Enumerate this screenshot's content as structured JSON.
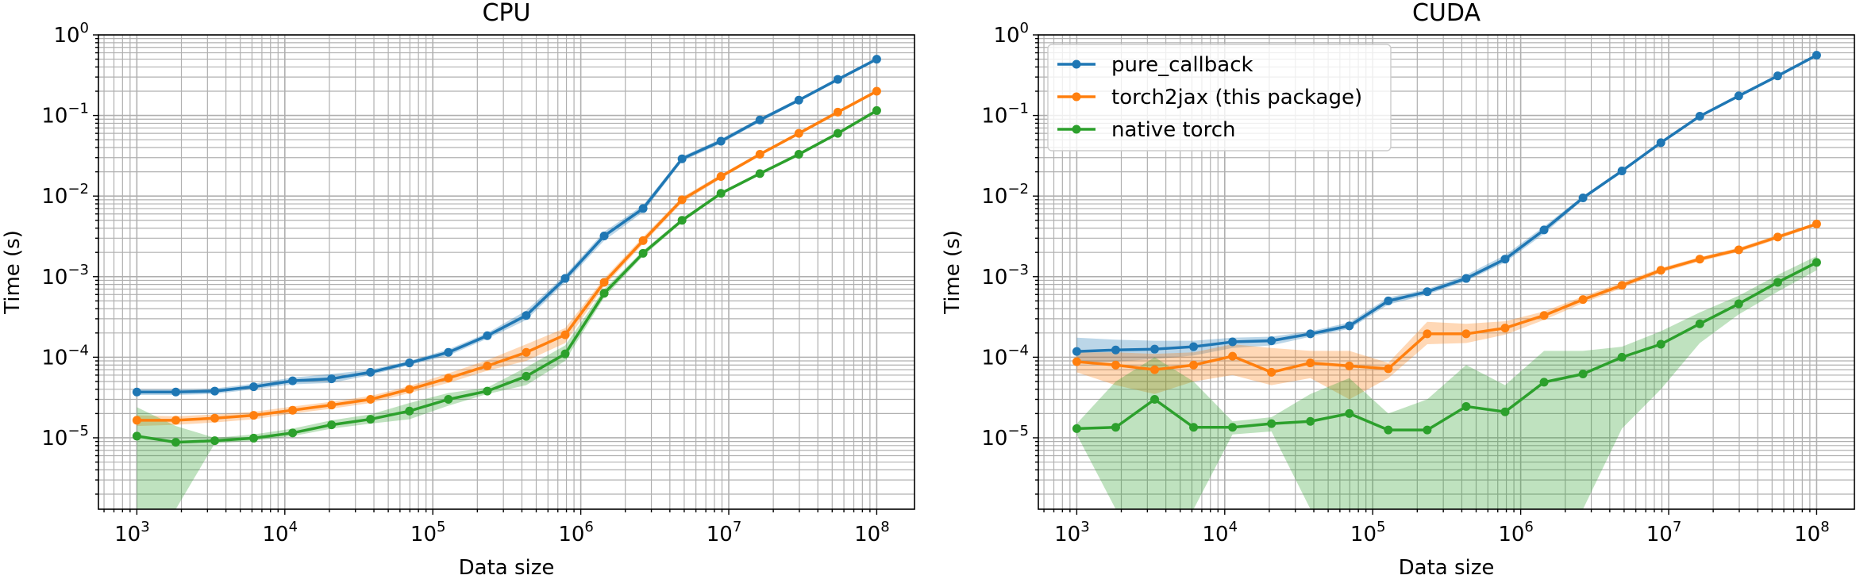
{
  "chart_data": [
    {
      "type": "line",
      "title": "CPU",
      "xlabel": "Data size",
      "ylabel": "Time (s)",
      "xscale": "log",
      "yscale": "log",
      "xlim": [
        550,
        180000000
      ],
      "ylim": [
        1.3e-06,
        1.0
      ],
      "grid": "major and minor",
      "legend": null,
      "x": [
        1000,
        1833,
        3360,
        6158,
        11288,
        20691,
        37927,
        69519,
        127427,
        233572,
        428133,
        784760,
        1438450,
        2636651,
        4832930,
        8858668,
        16237767,
        29763514,
        54555948,
        100000000
      ],
      "series": [
        {
          "name": "pure_callback",
          "color": "#1f77b4",
          "values": [
            3.7e-05,
            3.7e-05,
            3.8e-05,
            4.3e-05,
            5.1e-05,
            5.4e-05,
            6.5e-05,
            8.5e-05,
            0.000115,
            0.000185,
            0.00033,
            0.00095,
            0.0032,
            0.007,
            0.029,
            0.048,
            0.088,
            0.155,
            0.28,
            0.5
          ],
          "band_low": [
            3.4e-05,
            3.4e-05,
            3.5e-05,
            4e-05,
            4.6e-05,
            4.8e-05,
            6e-05,
            8e-05,
            0.000105,
            0.00017,
            0.00029,
            0.00085,
            0.0028,
            0.0063,
            0.027,
            0.045,
            0.083,
            0.148,
            0.27,
            0.48
          ],
          "band_high": [
            4e-05,
            4e-05,
            4.1e-05,
            4.7e-05,
            5.6e-05,
            6.2e-05,
            7e-05,
            9e-05,
            0.000125,
            0.0002,
            0.00038,
            0.00105,
            0.0036,
            0.0077,
            0.031,
            0.051,
            0.093,
            0.162,
            0.29,
            0.52
          ]
        },
        {
          "name": "torch2jax (this package)",
          "color": "#ff7f0e",
          "values": [
            1.65e-05,
            1.65e-05,
            1.75e-05,
            1.9e-05,
            2.2e-05,
            2.55e-05,
            3e-05,
            4e-05,
            5.5e-05,
            7.8e-05,
            0.000115,
            0.00019,
            0.00085,
            0.0028,
            0.009,
            0.0175,
            0.033,
            0.06,
            0.11,
            0.2
          ],
          "band_low": [
            1.4e-05,
            1.45e-05,
            1.55e-05,
            1.7e-05,
            2e-05,
            2.3e-05,
            2.7e-05,
            3.6e-05,
            4.8e-05,
            6.8e-05,
            9e-05,
            0.00015,
            0.00076,
            0.00255,
            0.0083,
            0.0165,
            0.0315,
            0.057,
            0.105,
            0.19
          ],
          "band_high": [
            1.9e-05,
            1.85e-05,
            1.95e-05,
            2.1e-05,
            2.45e-05,
            2.8e-05,
            3.3e-05,
            4.4e-05,
            6.3e-05,
            9.2e-05,
            0.000145,
            0.00023,
            0.00095,
            0.0031,
            0.0097,
            0.0185,
            0.0345,
            0.063,
            0.115,
            0.21
          ]
        },
        {
          "name": "native torch",
          "color": "#2ca02c",
          "values": [
            1.05e-05,
            8.8e-06,
            9.2e-06,
            9.9e-06,
            1.15e-05,
            1.45e-05,
            1.7e-05,
            2.15e-05,
            3e-05,
            3.8e-05,
            5.8e-05,
            0.00011,
            0.00062,
            0.00195,
            0.005,
            0.0108,
            0.019,
            0.033,
            0.06,
            0.115
          ],
          "band_low": [
            1.3e-06,
            1.3e-06,
            8.5e-06,
            9.2e-06,
            1.05e-05,
            1.3e-05,
            1.5e-05,
            1.7e-05,
            2.5e-05,
            3.5e-05,
            4.5e-05,
            9e-05,
            0.00055,
            0.0018,
            0.0047,
            0.0103,
            0.0182,
            0.0315,
            0.0575,
            0.11
          ],
          "band_high": [
            2.4e-05,
            1.4e-05,
            1e-05,
            1.1e-05,
            1.3e-05,
            1.65e-05,
            1.95e-05,
            2.7e-05,
            3.6e-05,
            4.2e-05,
            7.5e-05,
            0.00014,
            0.0007,
            0.0021,
            0.0053,
            0.0113,
            0.0198,
            0.0345,
            0.0625,
            0.12
          ]
        }
      ]
    },
    {
      "type": "line",
      "title": "CUDA",
      "xlabel": "Data size",
      "ylabel": "Time (s)",
      "xscale": "log",
      "yscale": "log",
      "xlim": [
        550,
        180000000
      ],
      "ylim": [
        1.3e-06,
        1.0
      ],
      "grid": "major and minor",
      "legend": "upper left",
      "x": [
        1000,
        1833,
        3360,
        6158,
        11288,
        20691,
        37927,
        69519,
        127427,
        233572,
        428133,
        784760,
        1438450,
        2636651,
        4832930,
        8858668,
        16237767,
        29763514,
        54555948,
        100000000
      ],
      "series": [
        {
          "name": "pure_callback",
          "color": "#1f77b4",
          "values": [
            0.000118,
            0.000123,
            0.000126,
            0.000135,
            0.000155,
            0.00016,
            0.000195,
            0.000245,
            0.0005,
            0.00065,
            0.00095,
            0.00165,
            0.0038,
            0.0095,
            0.0205,
            0.046,
            0.098,
            0.175,
            0.31,
            0.56
          ],
          "band_low": [
            8.5e-05,
            8.8e-05,
            9.5e-05,
            0.000105,
            0.00013,
            0.00014,
            0.00018,
            0.000225,
            0.00045,
            0.0006,
            0.00088,
            0.0015,
            0.0034,
            0.009,
            0.0195,
            0.044,
            0.094,
            0.17,
            0.3,
            0.54
          ],
          "band_high": [
            0.000175,
            0.000165,
            0.00016,
            0.00016,
            0.000175,
            0.00018,
            0.00021,
            0.00027,
            0.00055,
            0.0007,
            0.00105,
            0.00185,
            0.0042,
            0.01,
            0.0215,
            0.048,
            0.102,
            0.18,
            0.32,
            0.58
          ]
        },
        {
          "name": "torch2jax (this package)",
          "color": "#ff7f0e",
          "values": [
            8.8e-05,
            8e-05,
            7e-05,
            8e-05,
            0.000103,
            6.5e-05,
            8.5e-05,
            7.8e-05,
            7.2e-05,
            0.000195,
            0.000195,
            0.00023,
            0.00033,
            0.00052,
            0.00078,
            0.0012,
            0.00165,
            0.00215,
            0.0031,
            0.0045
          ],
          "band_low": [
            6.5e-05,
            4.5e-05,
            3.5e-05,
            5e-05,
            6e-05,
            4.5e-05,
            5.5e-05,
            3e-05,
            5.5e-05,
            0.000145,
            0.00015,
            0.00019,
            0.00029,
            0.00047,
            0.00072,
            0.00112,
            0.00155,
            0.00202,
            0.00292,
            0.0043
          ],
          "band_high": [
            0.000115,
            0.000115,
            0.00011,
            0.000115,
            0.000145,
            0.00013,
            0.00012,
            0.00012,
            8.5e-05,
            0.000275,
            0.00026,
            0.00028,
            0.00037,
            0.00057,
            0.00085,
            0.00128,
            0.00175,
            0.00228,
            0.0033,
            0.0047
          ]
        },
        {
          "name": "native torch",
          "color": "#2ca02c",
          "values": [
            1.3e-05,
            1.35e-05,
            3e-05,
            1.35e-05,
            1.35e-05,
            1.5e-05,
            1.6e-05,
            2e-05,
            1.25e-05,
            1.25e-05,
            2.45e-05,
            2.1e-05,
            4.9e-05,
            6.2e-05,
            0.0001,
            0.000145,
            0.00026,
            0.00046,
            0.00085,
            0.0015
          ],
          "band_low": [
            1.1e-05,
            1.3e-06,
            1.3e-06,
            1.3e-06,
            1.1e-05,
            1.2e-05,
            1.3e-06,
            1.3e-06,
            1.3e-06,
            1.3e-06,
            1.3e-06,
            1.3e-06,
            1.3e-06,
            1.3e-06,
            1.3e-05,
            4e-05,
            0.00015,
            0.00034,
            0.00065,
            0.0012
          ],
          "band_high": [
            1.5e-05,
            5e-05,
            0.0001,
            5e-05,
            1.6e-05,
            1.8e-05,
            3.5e-05,
            5.5e-05,
            2e-05,
            3e-05,
            8e-05,
            4.5e-05,
            0.00012,
            0.00012,
            0.000135,
            0.00021,
            0.00036,
            0.00058,
            0.00105,
            0.0018
          ]
        }
      ]
    }
  ]
}
